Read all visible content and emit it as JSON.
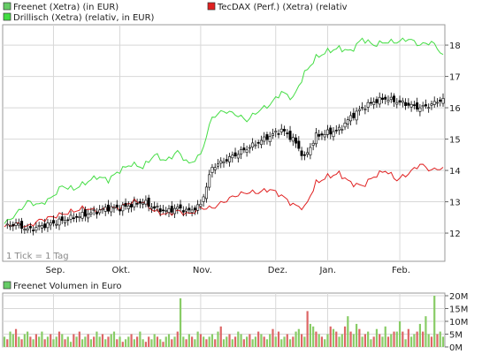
{
  "legend": {
    "freenet": "Freenet (Xetra) (in EUR)",
    "tecdax": "TecDAX (Perf.) (Xetra) (relativ",
    "drillisch": "Drillisch (Xetra) (relativ, in EUR)",
    "volume": "Freenet Volumen in Euro"
  },
  "note": "1 Tick = 1 Tag",
  "colors": {
    "freenet_up": "#ffffff",
    "freenet_down": "#000000",
    "tecdax": "#e02020",
    "drillisch": "#44dd44",
    "vol_up": "#88cc66",
    "vol_down": "#dd6666",
    "grid": "#d8d8d8",
    "frame": "#999999"
  },
  "chart_data": [
    {
      "type": "line",
      "title": "",
      "x_ticks": [
        "Sep.",
        "Okt.",
        "Nov.",
        "Dez.",
        "Jan.",
        "Feb."
      ],
      "x_tick_days": [
        17,
        40,
        68,
        94,
        112,
        137
      ],
      "day_range": [
        0,
        152
      ],
      "y_ticks": [
        12,
        13,
        14,
        15,
        16,
        17,
        18
      ],
      "ylim": [
        11.1,
        18.65
      ],
      "series": [
        {
          "name": "Freenet (Xetra) (in EUR)",
          "role": "candles",
          "days": [
            0,
            4,
            8,
            12,
            16,
            20,
            24,
            28,
            32,
            36,
            40,
            44,
            48,
            52,
            56,
            60,
            64,
            68,
            72,
            76,
            80,
            84,
            88,
            92,
            96,
            100,
            104,
            108,
            112,
            116,
            120,
            124,
            128,
            132,
            136,
            140,
            144,
            148,
            152
          ],
          "values": [
            12.2,
            12.3,
            12.1,
            12.2,
            12.3,
            12.4,
            12.5,
            12.6,
            12.7,
            12.8,
            12.8,
            12.9,
            13.0,
            12.8,
            12.7,
            12.8,
            12.7,
            12.9,
            14.1,
            14.3,
            14.5,
            14.7,
            14.9,
            15.1,
            15.3,
            15.0,
            14.4,
            15.1,
            15.2,
            15.3,
            15.7,
            16.0,
            16.2,
            16.3,
            16.2,
            16.1,
            16.0,
            16.1,
            16.3
          ]
        },
        {
          "name": "TecDAX (Perf.) (Xetra) (relativ",
          "role": "line",
          "days": [
            0,
            4,
            8,
            12,
            16,
            20,
            24,
            28,
            32,
            36,
            40,
            44,
            48,
            52,
            56,
            60,
            64,
            68,
            72,
            76,
            80,
            84,
            88,
            92,
            96,
            100,
            104,
            108,
            112,
            116,
            120,
            124,
            128,
            132,
            136,
            140,
            144,
            148,
            152
          ],
          "values": [
            12.2,
            12.3,
            12.2,
            12.4,
            12.5,
            12.6,
            12.7,
            12.8,
            12.7,
            12.8,
            12.8,
            13.0,
            13.0,
            12.7,
            12.6,
            12.7,
            12.6,
            12.8,
            12.8,
            13.0,
            13.2,
            13.3,
            13.3,
            13.4,
            13.2,
            12.9,
            12.8,
            13.6,
            13.8,
            13.9,
            13.6,
            13.5,
            13.8,
            14.0,
            13.7,
            13.9,
            14.2,
            14.0,
            14.1
          ]
        },
        {
          "name": "Drillisch (Xetra) (relativ, in EUR)",
          "role": "line",
          "days": [
            0,
            4,
            8,
            12,
            16,
            20,
            24,
            28,
            32,
            36,
            40,
            44,
            48,
            52,
            56,
            60,
            64,
            68,
            72,
            76,
            80,
            84,
            88,
            92,
            96,
            100,
            104,
            108,
            112,
            116,
            120,
            124,
            128,
            132,
            136,
            140,
            144,
            148,
            152
          ],
          "values": [
            12.3,
            12.6,
            13.0,
            12.9,
            13.1,
            13.5,
            13.4,
            13.6,
            13.8,
            13.7,
            14.0,
            14.2,
            14.1,
            14.5,
            14.3,
            14.6,
            14.2,
            14.5,
            15.7,
            15.9,
            15.8,
            15.6,
            15.9,
            16.1,
            16.5,
            16.3,
            17.1,
            17.6,
            17.8,
            17.9,
            17.8,
            18.2,
            18.0,
            18.1,
            18.1,
            18.2,
            18.0,
            18.1,
            17.7
          ]
        }
      ]
    },
    {
      "type": "bar",
      "title": "Freenet Volumen in Euro",
      "y_ticks": [
        "0M",
        "5M",
        "10M",
        "15M",
        "20M"
      ],
      "ylim": [
        0,
        20
      ],
      "day_range": [
        0,
        152
      ],
      "values": [
        4,
        3,
        6,
        5,
        7,
        4,
        3,
        5,
        6,
        4,
        3,
        5,
        4,
        6,
        3,
        4,
        5,
        3,
        4,
        6,
        5,
        3,
        4,
        2,
        5,
        4,
        6,
        3,
        4,
        5,
        3,
        4,
        6,
        4,
        5,
        3,
        4,
        5,
        6,
        3,
        4,
        2,
        3,
        4,
        5,
        3,
        4,
        6,
        3,
        2,
        4,
        3,
        5,
        4,
        3,
        2,
        4,
        5,
        3,
        4,
        6,
        19,
        4,
        3,
        5,
        4,
        3,
        6,
        5,
        4,
        3,
        4,
        5,
        3,
        6,
        8,
        3,
        4,
        5,
        3,
        4,
        6,
        5,
        3,
        4,
        5,
        3,
        4,
        6,
        5,
        4,
        3,
        5,
        7,
        4,
        6,
        3,
        4,
        5,
        3,
        4,
        6,
        7,
        5,
        4,
        14,
        9,
        8,
        6,
        5,
        4,
        3,
        5,
        8,
        7,
        6,
        4,
        5,
        8,
        12,
        6,
        5,
        9,
        7,
        4,
        5,
        6,
        3,
        4,
        7,
        5,
        4,
        8,
        4,
        5,
        6,
        6,
        10,
        6,
        3,
        7,
        4,
        5,
        6,
        9,
        6,
        12,
        5,
        4,
        20,
        5,
        6,
        4
      ],
      "up": [
        1,
        0,
        1,
        1,
        0,
        1,
        0,
        1,
        1,
        0,
        1,
        0,
        1,
        1,
        0,
        1,
        0,
        1,
        1,
        0,
        1,
        0,
        1,
        1,
        0,
        1,
        0,
        1,
        1,
        0,
        1,
        0,
        1,
        1,
        0,
        1,
        0,
        1,
        1,
        0,
        1,
        0,
        1,
        1,
        0,
        1,
        0,
        1,
        1,
        0,
        0,
        1,
        1,
        0,
        1,
        0,
        1,
        1,
        0,
        1,
        0,
        1,
        1,
        0,
        1,
        0,
        1,
        1,
        0,
        1,
        0,
        1,
        1,
        0,
        1,
        0,
        1,
        1,
        0,
        1,
        0,
        1,
        1,
        0,
        1,
        0,
        1,
        1,
        0,
        1,
        0,
        1,
        1,
        0,
        1,
        0,
        1,
        1,
        0,
        1,
        0,
        1,
        1,
        0,
        1,
        0,
        1,
        1,
        0,
        1,
        0,
        1,
        1,
        0,
        1,
        0,
        1,
        1,
        0,
        1,
        0,
        1,
        1,
        0,
        1,
        0,
        1,
        1,
        0,
        1,
        0,
        1,
        1,
        0,
        1,
        0,
        1,
        1,
        0,
        1,
        0,
        1,
        1,
        0,
        1,
        0,
        1,
        1,
        0,
        1,
        0,
        1,
        1
      ]
    }
  ]
}
